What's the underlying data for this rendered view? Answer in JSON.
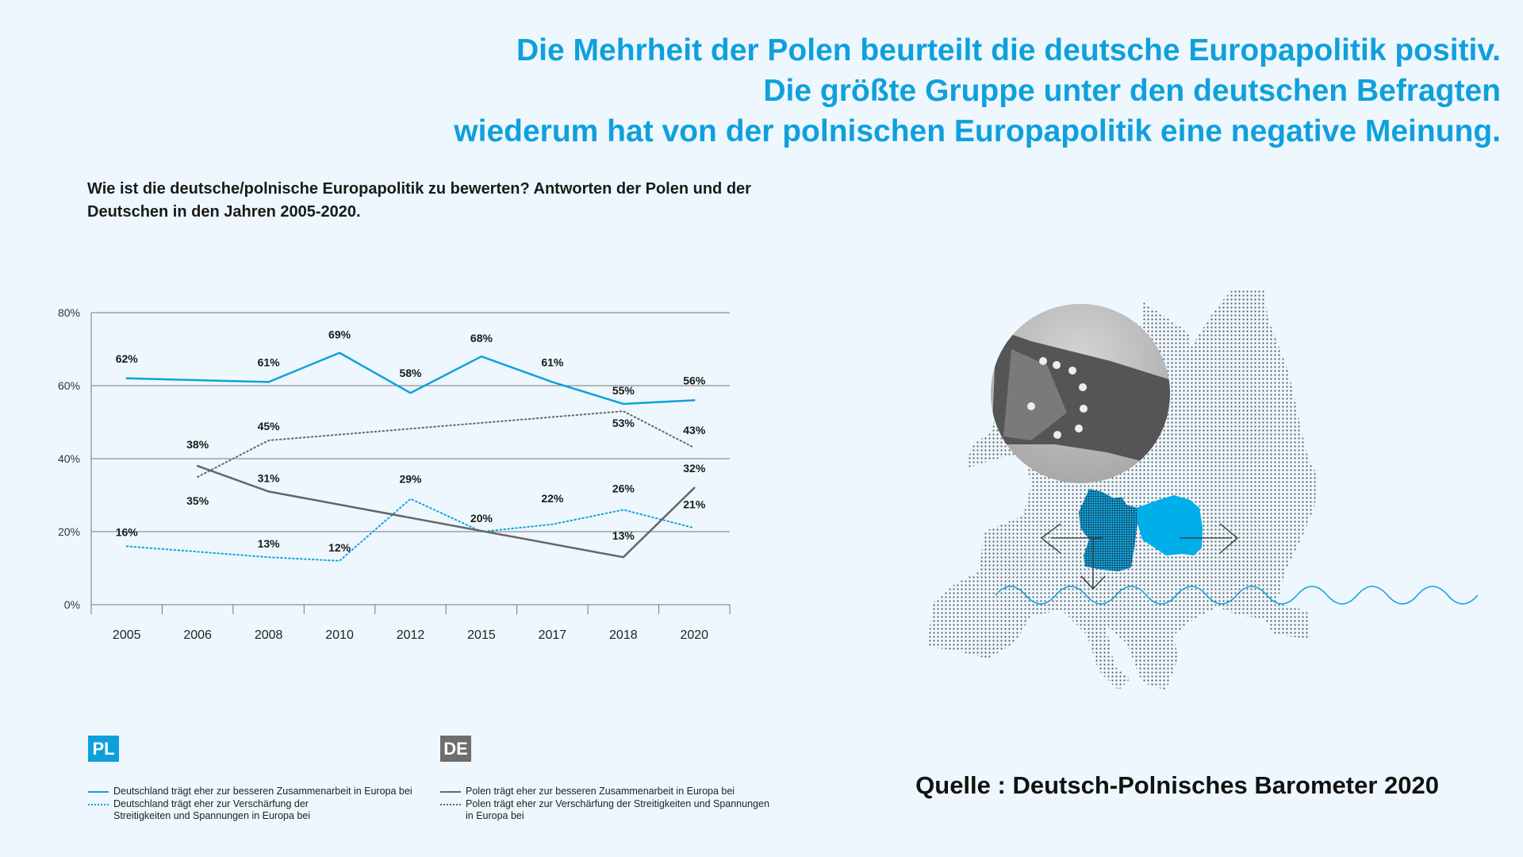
{
  "headline": [
    "Die Mehrheit der Polen beurteilt die deutsche Europapolitik positiv.",
    "Die größte Gruppe unter den deutschen Befragten",
    "wiederum hat von der polnischen Europapolitik eine negative Meinung."
  ],
  "subtitle": "Wie ist die deutsche/polnische Europapolitik zu bewerten? Antworten der Polen und der Deutschen in den Jahren 2005-2020.",
  "colors": {
    "accent": "#0fa0dc",
    "pl": "#0fa0dc",
    "de": "#666666",
    "background": "#edf7fd"
  },
  "legend": {
    "pl_badge": "PL",
    "de_badge": "DE",
    "pl_positive": "Deutschland trägt eher zur besseren Zusammenarbeit in Europa bei",
    "pl_negative": "Deutschland trägt eher zur Verschärfung der Streitigkeiten und Spannungen in Europa bei",
    "de_positive": "Polen trägt eher zur besseren Zusammenarbeit in Europa bei",
    "de_negative": "Polen trägt eher zur Verschärfung der Streitigkeiten und Spannungen in Europa bei"
  },
  "source": "Quelle : Deutsch-Polnisches Barometer 2020",
  "chart_data": {
    "type": "line",
    "title": "Wie ist die deutsche/polnische Europapolitik zu bewerten? Antworten der Polen und der Deutschen in den Jahren 2005-2020.",
    "categories": [
      "2005",
      "2006",
      "2008",
      "2010",
      "2012",
      "2015",
      "2017",
      "2018",
      "2020"
    ],
    "ylim": [
      0,
      80
    ],
    "yticks": [
      "0%",
      "20%",
      "40%",
      "60%",
      "80%"
    ],
    "grid": true,
    "legend_position": "bottom",
    "series": [
      {
        "name": "Deutschland trägt eher zur besseren Zusammenarbeit in Europa bei",
        "group": "PL",
        "style": "solid",
        "color": "#0fa0dc",
        "values": [
          62,
          null,
          61,
          69,
          58,
          68,
          61,
          55,
          56
        ]
      },
      {
        "name": "Deutschland trägt eher zur Verschärfung der Streitigkeiten und Spannungen in Europa bei",
        "group": "PL",
        "style": "dotted",
        "color": "#0fa0dc",
        "values": [
          16,
          null,
          13,
          12,
          29,
          20,
          22,
          26,
          21
        ]
      },
      {
        "name": "Polen trägt eher zur besseren Zusammenarbeit in Europa bei",
        "group": "DE",
        "style": "solid",
        "color": "#666666",
        "values": [
          null,
          38,
          31,
          null,
          null,
          null,
          null,
          13,
          32
        ]
      },
      {
        "name": "Polen trägt eher zur Verschärfung der Streitigkeiten und Spannungen in Europa bei",
        "group": "DE",
        "style": "dotted",
        "color": "#666666",
        "values": [
          null,
          35,
          45,
          null,
          null,
          null,
          null,
          53,
          43
        ]
      }
    ]
  }
}
